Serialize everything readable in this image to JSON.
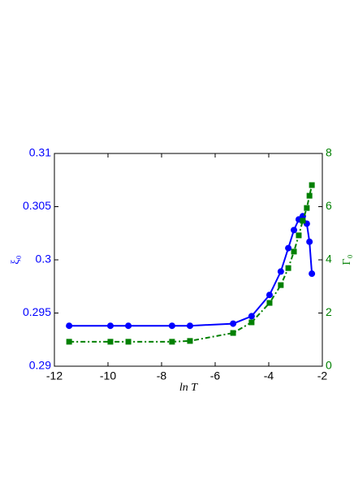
{
  "chart_data": {
    "type": "line",
    "xlabel": "ln T",
    "ylabel": "ξ₀",
    "y2label": "Γ₀",
    "x": [
      -11.45,
      -9.91,
      -9.24,
      -7.61,
      -6.94,
      -5.33,
      -4.64,
      -3.97,
      -3.55,
      -3.27,
      -3.06,
      -2.88,
      -2.73,
      -2.58,
      -2.48,
      -2.39
    ],
    "series": [
      {
        "name": "ξ₀",
        "color": "#0000ff",
        "marker": "circle",
        "dash": "solid",
        "axis": "y",
        "values": [
          0.2938,
          0.2938,
          0.2938,
          0.2938,
          0.2938,
          0.294,
          0.2947,
          0.2967,
          0.2989,
          0.3011,
          0.3028,
          0.3038,
          0.3041,
          0.3034,
          0.3017,
          0.2987
        ]
      },
      {
        "name": "Γ₀",
        "color": "#008000",
        "marker": "square",
        "dash": "dashdot",
        "axis": "y2",
        "values": [
          0.92,
          0.92,
          0.92,
          0.92,
          0.95,
          1.25,
          1.65,
          2.38,
          3.05,
          3.69,
          4.31,
          4.92,
          5.47,
          5.95,
          6.41,
          6.81
        ]
      }
    ],
    "xlim": [
      -12,
      -2
    ],
    "xticks": [
      -12,
      -10,
      -8,
      -6,
      -4,
      -2
    ],
    "ylim": [
      0.29,
      0.31
    ],
    "yticks": [
      0.29,
      0.295,
      0.3,
      0.305,
      0.31
    ],
    "y2lim": [
      0,
      8
    ],
    "y2ticks": [
      0,
      2,
      4,
      6,
      8
    ]
  }
}
